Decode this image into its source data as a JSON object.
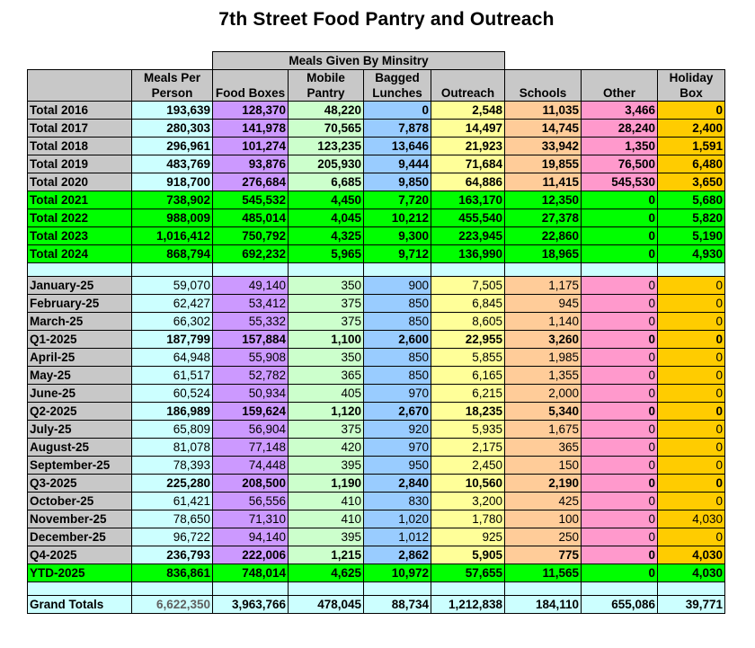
{
  "title": "7th Street Food Pantry and Outreach",
  "group_header": "Meals Given By Minsitry",
  "columns": [
    "Meals Per Person",
    "Food Boxes",
    "Mobile Pantry",
    "Bagged Lunches",
    "Outreach",
    "Schools",
    "Other",
    "Holiday Box"
  ],
  "colors": {
    "header_gray": "#c8c8c8",
    "green": "#00ff00",
    "lightcyan": "#ccffff",
    "purple": "#cc99ff",
    "lightgreen": "#ccffcc",
    "blue": "#99ccff",
    "yellow": "#ffff99",
    "peach": "#ffcc99",
    "pink": "#ff99cc",
    "orange": "#ffcc00",
    "white": "#ffffff"
  },
  "rows": [
    {
      "label": "Total 2016",
      "style": "plain",
      "bold": true,
      "values": [
        "193,639",
        "128,370",
        "48,220",
        "0",
        "2,548",
        "11,035",
        "3,466",
        "0"
      ]
    },
    {
      "label": "Total 2017",
      "style": "plain",
      "bold": true,
      "values": [
        "280,303",
        "141,978",
        "70,565",
        "7,878",
        "14,497",
        "14,745",
        "28,240",
        "2,400"
      ]
    },
    {
      "label": "Total 2018",
      "style": "plain",
      "bold": true,
      "values": [
        "296,961",
        "101,274",
        "123,235",
        "13,646",
        "21,923",
        "33,942",
        "1,350",
        "1,591"
      ]
    },
    {
      "label": "Total 2019",
      "style": "plain",
      "bold": true,
      "values": [
        "483,769",
        "93,876",
        "205,930",
        "9,444",
        "71,684",
        "19,855",
        "76,500",
        "6,480"
      ]
    },
    {
      "label": "Total 2020",
      "style": "plain",
      "bold": true,
      "values": [
        "918,700",
        "276,684",
        "6,685",
        "9,850",
        "64,886",
        "11,415",
        "545,530",
        "3,650"
      ]
    },
    {
      "label": "Total 2021",
      "style": "green",
      "bold": true,
      "values": [
        "738,902",
        "545,532",
        "4,450",
        "7,720",
        "163,170",
        "12,350",
        "0",
        "5,680"
      ]
    },
    {
      "label": "Total 2022",
      "style": "green",
      "bold": true,
      "values": [
        "988,009",
        "485,014",
        "4,045",
        "10,212",
        "455,540",
        "27,378",
        "0",
        "5,820"
      ]
    },
    {
      "label": "Total 2023",
      "style": "green",
      "bold": true,
      "values": [
        "1,016,412",
        "750,792",
        "4,325",
        "9,300",
        "223,945",
        "22,860",
        "0",
        "5,190"
      ]
    },
    {
      "label": "Total 2024",
      "style": "green",
      "bold": true,
      "values": [
        "868,794",
        "692,232",
        "5,965",
        "9,712",
        "136,990",
        "18,965",
        "0",
        "4,930"
      ]
    },
    {
      "label": "",
      "style": "spacer",
      "bold": false,
      "values": [
        "",
        "",
        "",
        "",
        "",
        "",
        "",
        ""
      ]
    },
    {
      "label": "January-25",
      "style": "plain",
      "bold": false,
      "values": [
        "59,070",
        "49,140",
        "350",
        "900",
        "7,505",
        "1,175",
        "0",
        "0"
      ]
    },
    {
      "label": "February-25",
      "style": "plain",
      "bold": false,
      "values": [
        "62,427",
        "53,412",
        "375",
        "850",
        "6,845",
        "945",
        "0",
        "0"
      ]
    },
    {
      "label": "March-25",
      "style": "plain",
      "bold": false,
      "values": [
        "66,302",
        "55,332",
        "375",
        "850",
        "8,605",
        "1,140",
        "0",
        "0"
      ]
    },
    {
      "label": "Q1-2025",
      "style": "plain",
      "bold": true,
      "values": [
        "187,799",
        "157,884",
        "1,100",
        "2,600",
        "22,955",
        "3,260",
        "0",
        "0"
      ]
    },
    {
      "label": "April-25",
      "style": "plain",
      "bold": false,
      "values": [
        "64,948",
        "55,908",
        "350",
        "850",
        "5,855",
        "1,985",
        "0",
        "0"
      ]
    },
    {
      "label": "May-25",
      "style": "plain",
      "bold": false,
      "values": [
        "61,517",
        "52,782",
        "365",
        "850",
        "6,165",
        "1,355",
        "0",
        "0"
      ]
    },
    {
      "label": "June-25",
      "style": "plain",
      "bold": false,
      "values": [
        "60,524",
        "50,934",
        "405",
        "970",
        "6,215",
        "2,000",
        "0",
        "0"
      ]
    },
    {
      "label": "Q2-2025",
      "style": "plain",
      "bold": true,
      "values": [
        "186,989",
        "159,624",
        "1,120",
        "2,670",
        "18,235",
        "5,340",
        "0",
        "0"
      ]
    },
    {
      "label": "July-25",
      "style": "plain",
      "bold": false,
      "values": [
        "65,809",
        "56,904",
        "375",
        "920",
        "5,935",
        "1,675",
        "0",
        "0"
      ]
    },
    {
      "label": "August-25",
      "style": "plain",
      "bold": false,
      "values": [
        "81,078",
        "77,148",
        "420",
        "970",
        "2,175",
        "365",
        "0",
        "0"
      ]
    },
    {
      "label": "September-25",
      "style": "plain",
      "bold": false,
      "values": [
        "78,393",
        "74,448",
        "395",
        "950",
        "2,450",
        "150",
        "0",
        "0"
      ]
    },
    {
      "label": "Q3-2025",
      "style": "plain",
      "bold": true,
      "values": [
        "225,280",
        "208,500",
        "1,190",
        "2,840",
        "10,560",
        "2,190",
        "0",
        "0"
      ]
    },
    {
      "label": "October-25",
      "style": "plain",
      "bold": false,
      "values": [
        "61,421",
        "56,556",
        "410",
        "830",
        "3,200",
        "425",
        "0",
        "0"
      ]
    },
    {
      "label": "November-25",
      "style": "plain",
      "bold": false,
      "values": [
        "78,650",
        "71,310",
        "410",
        "1,020",
        "1,780",
        "100",
        "0",
        "4,030"
      ]
    },
    {
      "label": "December-25",
      "style": "plain",
      "bold": false,
      "values": [
        "96,722",
        "94,140",
        "395",
        "1,012",
        "925",
        "250",
        "0",
        "0"
      ]
    },
    {
      "label": "Q4-2025",
      "style": "plain",
      "bold": true,
      "values": [
        "236,793",
        "222,006",
        "1,215",
        "2,862",
        "5,905",
        "775",
        "0",
        "4,030"
      ]
    },
    {
      "label": "YTD-2025",
      "style": "green",
      "bold": true,
      "values": [
        "836,861",
        "748,014",
        "4,625",
        "10,972",
        "57,655",
        "11,565",
        "0",
        "4,030"
      ]
    },
    {
      "label": "",
      "style": "spacer",
      "bold": false,
      "values": [
        "",
        "",
        "",
        "",
        "",
        "",
        "",
        ""
      ]
    },
    {
      "label": "Grand Totals",
      "style": "grand",
      "bold": true,
      "values": [
        "6,622,350",
        "3,963,766",
        "478,045",
        "88,734",
        "1,212,838",
        "184,110",
        "655,086",
        "39,771"
      ]
    }
  ]
}
